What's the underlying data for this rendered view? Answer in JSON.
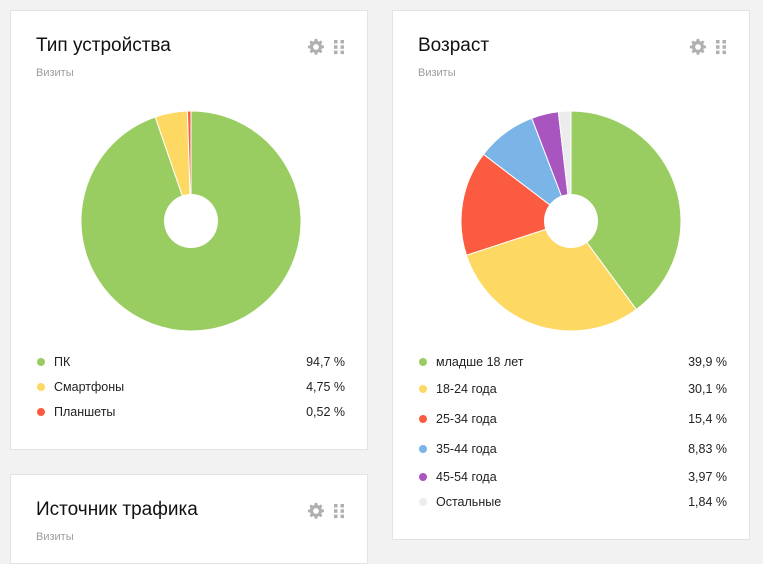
{
  "cards": {
    "device": {
      "title": "Тип устройства",
      "subtitle": "Визиты"
    },
    "age": {
      "title": "Возраст",
      "subtitle": "Визиты"
    },
    "traffic": {
      "title": "Источник трафика",
      "subtitle": "Визиты"
    }
  },
  "icons": [
    "gear-icon",
    "drag-handle-icon"
  ],
  "colors": {
    "green": "#9acd61",
    "yellow": "#fdd862",
    "red": "#fb5b40",
    "blue": "#7bb5e8",
    "purple": "#a855c0",
    "light_gray": "#ececec",
    "icon_gray": "#b0b0b0"
  },
  "chart_data": [
    {
      "type": "pie",
      "title": "Тип устройства",
      "subtitle": "Визиты",
      "categories": [
        "ПК",
        "Смартфоны",
        "Планшеты"
      ],
      "values": [
        94.7,
        4.75,
        0.52
      ],
      "value_labels": [
        "94,7 %",
        "4,75 %",
        "0,52 %"
      ],
      "colors": [
        "#9acd61",
        "#fdd862",
        "#fb5b40"
      ],
      "legend": "bottom"
    },
    {
      "type": "pie",
      "title": "Возраст",
      "subtitle": "Визиты",
      "categories": [
        "младше 18 лет",
        "18-24 года",
        "25-34 года",
        "35-44 года",
        "45-54 года",
        "Остальные"
      ],
      "values": [
        39.9,
        30.1,
        15.4,
        8.83,
        3.97,
        1.84
      ],
      "value_labels": [
        "39,9 %",
        "30,1 %",
        "15,4 %",
        "8,83 %",
        "3,97 %",
        "1,84 %"
      ],
      "colors": [
        "#9acd61",
        "#fdd862",
        "#fb5b40",
        "#7bb5e8",
        "#a855c0",
        "#ececec"
      ],
      "legend": "bottom"
    }
  ]
}
